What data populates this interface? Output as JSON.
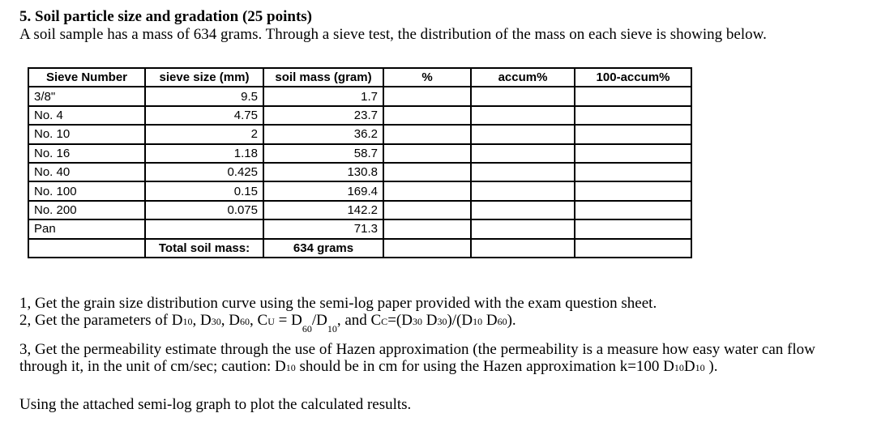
{
  "problem": {
    "title": "5. Soil particle size and gradation (25 points)",
    "intro": "A soil sample has a mass of 634 grams. Through a sieve test, the distribution of the mass on each sieve is showing below."
  },
  "table": {
    "headers": [
      "Sieve Number",
      "sieve size (mm)",
      "soil mass (gram)",
      "%",
      "accum%",
      "100-accum%"
    ],
    "rows": [
      {
        "sieve_number": "3/8\"",
        "sieve_size": "9.5",
        "soil_mass": "1.7",
        "percent": "",
        "accum": "",
        "remaining": ""
      },
      {
        "sieve_number": "No. 4",
        "sieve_size": "4.75",
        "soil_mass": "23.7",
        "percent": "",
        "accum": "",
        "remaining": ""
      },
      {
        "sieve_number": "No. 10",
        "sieve_size": "2",
        "soil_mass": "36.2",
        "percent": "",
        "accum": "",
        "remaining": ""
      },
      {
        "sieve_number": "No. 16",
        "sieve_size": "1.18",
        "soil_mass": "58.7",
        "percent": "",
        "accum": "",
        "remaining": ""
      },
      {
        "sieve_number": "No. 40",
        "sieve_size": "0.425",
        "soil_mass": "130.8",
        "percent": "",
        "accum": "",
        "remaining": ""
      },
      {
        "sieve_number": "No. 100",
        "sieve_size": "0.15",
        "soil_mass": "169.4",
        "percent": "",
        "accum": "",
        "remaining": ""
      },
      {
        "sieve_number": "No. 200",
        "sieve_size": "0.075",
        "soil_mass": "142.2",
        "percent": "",
        "accum": "",
        "remaining": ""
      },
      {
        "sieve_number": "Pan",
        "sieve_size": "",
        "soil_mass": "71.3",
        "percent": "",
        "accum": "",
        "remaining": ""
      }
    ],
    "total": {
      "label": "Total soil mass:",
      "value": "634 grams"
    }
  },
  "questions": {
    "q1": "1, Get the grain size distribution curve using the semi-log paper provided with the exam question sheet.",
    "q2": {
      "prefix": "2, Get the parameters of D",
      "d10": "10",
      "sep1": ", D",
      "d30": "30",
      "sep2": ", D",
      "d60": "60",
      "cu_text": ", C",
      "cu_sub": "U",
      "cu_eq": " = D",
      "cu_60": "60",
      "cu_div": "/D",
      "cu_10": "10",
      "cc_pre": ", and C",
      "cc_sub": "C",
      "cc_eq": "=(D",
      "cc_a": "30",
      "cc_b": " D",
      "cc_c": "30",
      "cc_d": ")/(D",
      "cc_e": "10",
      "cc_f": " D",
      "cc_g": "60",
      "cc_end": ")."
    },
    "q3": {
      "line1": "3, Get the permeability estimate through the use of Hazen approximation (the permeability is a measure how easy water can flow",
      "line2_a": "through it, in the unit of cm/sec; caution: D",
      "line2_sub1": "10",
      "line2_b": " should be in cm for using the Hazen approximation k=100 D",
      "line2_sub2": "10",
      "line2_c": "D",
      "line2_sub3": "10",
      "line2_d": " )."
    },
    "closing": "Using the attached semi-log graph to plot the calculated results."
  }
}
